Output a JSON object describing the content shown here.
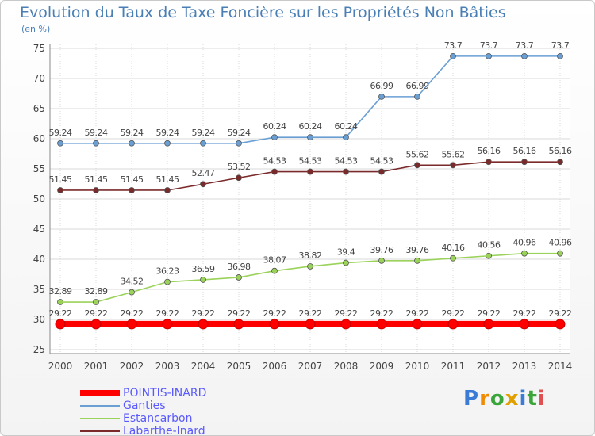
{
  "title": "Evolution du Taux de Taxe Foncière sur les Propriétés Non Bâties",
  "unit": "(en %)",
  "logo": {
    "letters": [
      "P",
      "r",
      "o",
      "x",
      "i",
      "t",
      "i"
    ],
    "colors": [
      "#3a7bd5",
      "#f08a00",
      "#3aa63a",
      "#e0a000",
      "#3a7bd5",
      "#3aa63a",
      "#e05050"
    ]
  },
  "chart_data": {
    "type": "line",
    "x": [
      "2000",
      "2001",
      "2002",
      "2003",
      "2004",
      "2005",
      "2006",
      "2007",
      "2008",
      "2009",
      "2010",
      "2011",
      "2012",
      "2013",
      "2014"
    ],
    "ylim": [
      25,
      75
    ],
    "yticks": [
      25,
      30,
      35,
      40,
      45,
      50,
      55,
      60,
      65,
      70,
      75
    ],
    "grid": true,
    "series": [
      {
        "name": "POINTIS-INARD",
        "color": "#ff0000",
        "values": [
          29.22,
          29.22,
          29.22,
          29.22,
          29.22,
          29.22,
          29.22,
          29.22,
          29.22,
          29.22,
          29.22,
          29.22,
          29.22,
          29.22,
          29.22
        ],
        "labels": [
          "29.22",
          "29.22",
          "29.22",
          "29.22",
          "29.22",
          "29.22",
          "29.22",
          "29.22",
          "29.22",
          "29.22",
          "29.22",
          "29.22",
          "29.22",
          "29.22",
          "29.22"
        ]
      },
      {
        "name": "Ganties",
        "color": "#6a9fd4",
        "values": [
          59.24,
          59.24,
          59.24,
          59.24,
          59.24,
          59.24,
          60.24,
          60.24,
          60.24,
          66.99,
          66.99,
          73.7,
          73.7,
          73.7,
          73.7
        ],
        "labels": [
          "59.24",
          "59.24",
          "59.24",
          "59.24",
          "59.24",
          "59.24",
          "60.24",
          "60.24",
          "60.24",
          "66.99",
          "66.99",
          "73.7",
          "73.7",
          "73.7",
          "73.7"
        ]
      },
      {
        "name": "Estancarbon",
        "color": "#9ad25a",
        "values": [
          32.89,
          32.89,
          34.52,
          36.23,
          36.59,
          36.98,
          38.07,
          38.82,
          39.4,
          39.76,
          39.76,
          40.16,
          40.56,
          40.96,
          40.96
        ],
        "labels": [
          "32.89",
          "32.89",
          "34.52",
          "36.23",
          "36.59",
          "36.98",
          "38.07",
          "38.82",
          "39.4",
          "39.76",
          "39.76",
          "40.16",
          "40.56",
          "40.96",
          "40.96"
        ]
      },
      {
        "name": "Labarthe-Inard",
        "color": "#7a2a2a",
        "values": [
          51.45,
          51.45,
          51.45,
          51.45,
          52.47,
          53.52,
          54.53,
          54.53,
          54.53,
          54.53,
          55.62,
          55.62,
          56.16,
          56.16,
          56.16
        ],
        "labels": [
          "51.45",
          "51.45",
          "51.45",
          "51.45",
          "52.47",
          "53.52",
          "54.53",
          "54.53",
          "54.53",
          "54.53",
          "55.62",
          "55.62",
          "56.16",
          "56.16",
          "56.16"
        ]
      }
    ]
  }
}
